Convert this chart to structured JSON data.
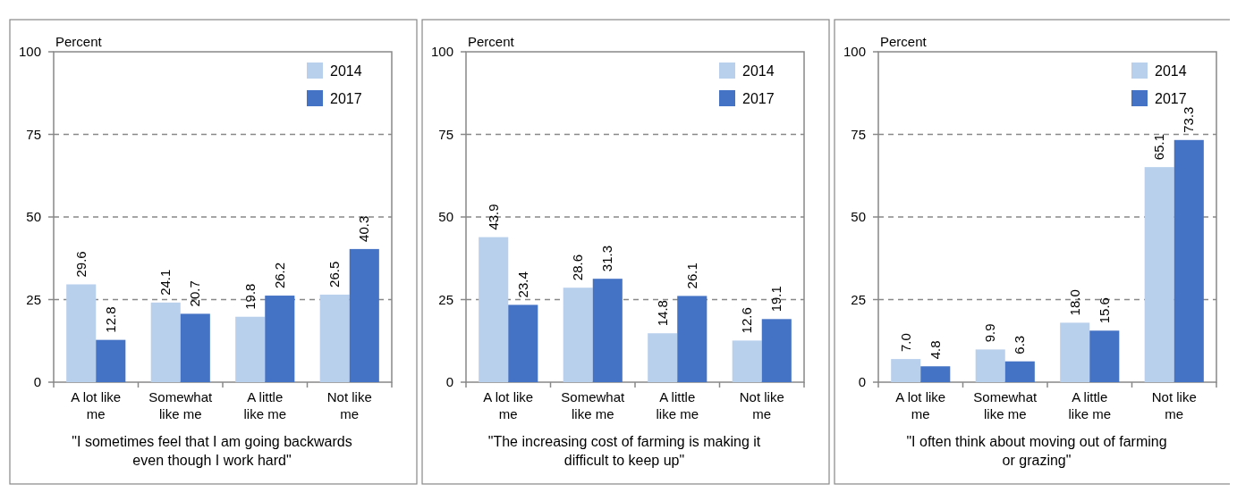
{
  "chart_data": [
    {
      "type": "bar",
      "ylabel": "Percent",
      "xlabel": "\"I sometimes feel that I am going backwards even though I work hard\"",
      "categories": [
        "A lot like me",
        "Somewhat like me",
        "A little like me",
        "Not like me"
      ],
      "series": [
        {
          "name": "2014",
          "color": "#b9d0ed",
          "values": [
            29.6,
            24.1,
            19.8,
            26.5
          ],
          "value_labels": [
            "29.6",
            "24.1",
            "19.8",
            "26.5"
          ]
        },
        {
          "name": "2017",
          "color": "#4472c4",
          "values": [
            12.8,
            20.7,
            26.2,
            40.3
          ],
          "value_labels": [
            "12.8",
            "20.7",
            "26.2",
            "40.3"
          ]
        }
      ],
      "ylim": [
        0,
        100
      ],
      "yticks": [
        0,
        25,
        50,
        75,
        100
      ],
      "grid": "y",
      "legend": "top right"
    },
    {
      "type": "bar",
      "ylabel": "Percent",
      "xlabel": "\"The increasing cost of farming is making it difficult to keep up\"",
      "categories": [
        "A lot like me",
        "Somewhat like me",
        "A little like me",
        "Not like me"
      ],
      "series": [
        {
          "name": "2014",
          "color": "#b9d0ed",
          "values": [
            43.9,
            28.6,
            14.8,
            12.6
          ],
          "value_labels": [
            "43.9",
            "28.6",
            "14.8",
            "12.6"
          ]
        },
        {
          "name": "2017",
          "color": "#4472c4",
          "values": [
            23.4,
            31.3,
            26.1,
            19.1
          ],
          "value_labels": [
            "23.4",
            "31.3",
            "26.1",
            "19.1"
          ]
        }
      ],
      "ylim": [
        0,
        100
      ],
      "yticks": [
        0,
        25,
        50,
        75,
        100
      ],
      "grid": "y",
      "legend": "top right"
    },
    {
      "type": "bar",
      "ylabel": "Percent",
      "xlabel": "\"I often think about moving out of farming or grazing\"",
      "categories": [
        "A lot like me",
        "Somewhat like me",
        "A little like me",
        "Not like me"
      ],
      "series": [
        {
          "name": "2014",
          "color": "#b9d0ed",
          "values": [
            7.0,
            9.9,
            18.0,
            65.1
          ],
          "value_labels": [
            "7.0",
            "9.9",
            "18.0",
            "65.1"
          ]
        },
        {
          "name": "2017",
          "color": "#4472c4",
          "values": [
            4.8,
            6.3,
            15.6,
            73.3
          ],
          "value_labels": [
            "4.8",
            "6.3",
            "15.6",
            "73.3"
          ]
        }
      ],
      "ylim": [
        0,
        100
      ],
      "yticks": [
        0,
        25,
        50,
        75,
        100
      ],
      "grid": "y",
      "legend": "top right"
    }
  ]
}
